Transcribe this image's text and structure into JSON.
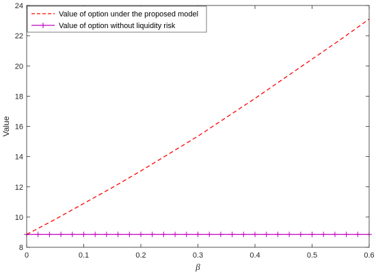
{
  "chart_data": {
    "type": "line",
    "title": "",
    "xlabel": "β",
    "ylabel": "Value",
    "xlim": [
      0,
      0.6
    ],
    "ylim": [
      8,
      24
    ],
    "xticks": [
      0,
      0.1,
      0.2,
      0.3,
      0.4,
      0.5,
      0.6
    ],
    "xtick_labels": [
      "0",
      "0.1",
      "0.2",
      "0.3",
      "0.4",
      "0.5",
      "0.6"
    ],
    "yticks": [
      8,
      10,
      12,
      14,
      16,
      18,
      20,
      22,
      24
    ],
    "ytick_labels": [
      "8",
      "10",
      "12",
      "14",
      "16",
      "18",
      "20",
      "22",
      "24"
    ],
    "grid": false,
    "legend_position": "top-left",
    "series": [
      {
        "name": "Value of option under the proposed model",
        "color": "#ff0000",
        "style": "dashed",
        "marker": "none",
        "x": [
          0,
          0.05,
          0.1,
          0.15,
          0.2,
          0.25,
          0.3,
          0.35,
          0.4,
          0.45,
          0.5,
          0.55,
          0.6
        ],
        "y": [
          8.85,
          9.85,
          10.9,
          11.95,
          13.05,
          14.2,
          15.35,
          16.6,
          17.85,
          19.15,
          20.45,
          21.75,
          23.1
        ]
      },
      {
        "name": "Value of option without liquidity risk",
        "color": "#bf00bf",
        "style": "solid",
        "marker": "plus",
        "x": [
          0,
          0.02,
          0.04,
          0.06,
          0.08,
          0.1,
          0.12,
          0.14,
          0.16,
          0.18,
          0.2,
          0.22,
          0.24,
          0.26,
          0.28,
          0.3,
          0.32,
          0.34,
          0.36,
          0.38,
          0.4,
          0.42,
          0.44,
          0.46,
          0.48,
          0.5,
          0.52,
          0.54,
          0.56,
          0.58,
          0.6
        ],
        "y": [
          8.85,
          8.85,
          8.85,
          8.85,
          8.85,
          8.85,
          8.85,
          8.85,
          8.85,
          8.85,
          8.85,
          8.85,
          8.85,
          8.85,
          8.85,
          8.85,
          8.85,
          8.85,
          8.85,
          8.85,
          8.85,
          8.85,
          8.85,
          8.85,
          8.85,
          8.85,
          8.85,
          8.85,
          8.85,
          8.85,
          8.85
        ]
      }
    ]
  }
}
